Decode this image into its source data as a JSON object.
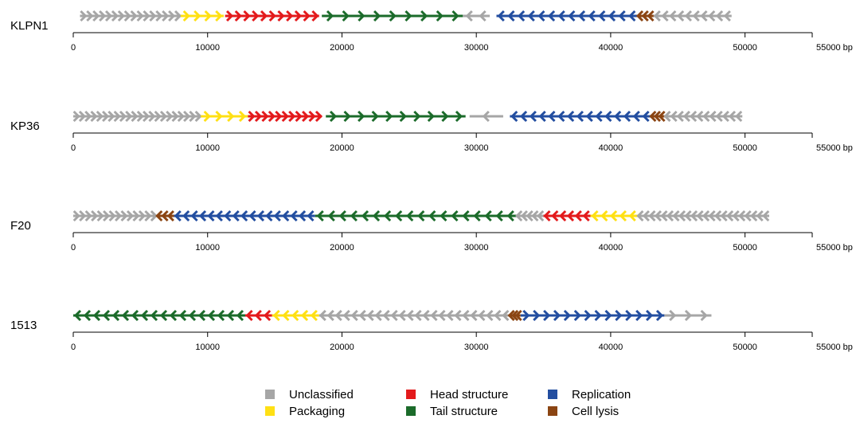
{
  "axis": {
    "tick_values": [
      0,
      10000,
      20000,
      30000,
      40000,
      50000
    ],
    "end_label": "55000 bp",
    "max": 55000
  },
  "colors": {
    "Unclassified": "#a6a6a6",
    "Packaging": "#ffe014",
    "Head structure": "#e31a1c",
    "Tail structure": "#1b6b2a",
    "Replication": "#234ea0",
    "Cell lysis": "#8b4513"
  },
  "legend": [
    {
      "label": "Unclassified",
      "category": "Unclassified"
    },
    {
      "label": "Packaging",
      "category": "Packaging"
    },
    {
      "label": "Head structure",
      "category": "Head structure"
    },
    {
      "label": "Tail structure",
      "category": "Tail structure"
    },
    {
      "label": "Replication",
      "category": "Replication"
    },
    {
      "label": "Cell lysis",
      "category": "Cell lysis"
    }
  ],
  "tracks": [
    {
      "name": "KLPN1",
      "genes": [
        [
          "Unclassified",
          500,
          8000,
          1,
          16
        ],
        [
          "Packaging",
          8000,
          11200,
          1,
          4
        ],
        [
          "Head structure",
          11300,
          18300,
          1,
          11
        ],
        [
          "Tail structure",
          18500,
          29000,
          1,
          9
        ],
        [
          "Unclassified",
          29000,
          31000,
          -1,
          2
        ],
        [
          "Replication",
          31500,
          42000,
          -1,
          14
        ],
        [
          "Cell lysis",
          42000,
          43200,
          -1,
          3
        ],
        [
          "Unclassified",
          43200,
          49000,
          -1,
          10
        ]
      ]
    },
    {
      "name": "KP36",
      "genes": [
        [
          "Unclassified",
          0,
          9500,
          1,
          22
        ],
        [
          "Packaging",
          9500,
          13000,
          1,
          4
        ],
        [
          "Head structure",
          13000,
          18500,
          1,
          11
        ],
        [
          "Tail structure",
          18800,
          29200,
          1,
          10
        ],
        [
          "Unclassified",
          29500,
          32000,
          -1,
          1
        ],
        [
          "Replication",
          32500,
          43000,
          -1,
          15
        ],
        [
          "Cell lysis",
          43000,
          44000,
          -1,
          3
        ],
        [
          "Unclassified",
          44000,
          49800,
          -1,
          12
        ]
      ]
    },
    {
      "name": "F20",
      "genes": [
        [
          "Unclassified",
          0,
          6200,
          1,
          14
        ],
        [
          "Cell lysis",
          6200,
          7500,
          -1,
          3
        ],
        [
          "Replication",
          7500,
          18000,
          -1,
          17
        ],
        [
          "Tail structure",
          18000,
          33000,
          -1,
          18
        ],
        [
          "Unclassified",
          33000,
          35000,
          -1,
          5
        ],
        [
          "Head structure",
          35000,
          38500,
          -1,
          6
        ],
        [
          "Packaging",
          38500,
          42000,
          -1,
          5
        ],
        [
          "Unclassified",
          42000,
          51800,
          -1,
          22
        ]
      ]
    },
    {
      "name": "1513",
      "genes": [
        [
          "Tail structure",
          0,
          12800,
          -1,
          18
        ],
        [
          "Head structure",
          12800,
          14800,
          -1,
          3
        ],
        [
          "Packaging",
          14800,
          18300,
          -1,
          5
        ],
        [
          "Unclassified",
          18300,
          32500,
          -1,
          24
        ],
        [
          "Cell lysis",
          32500,
          33300,
          -1,
          3
        ],
        [
          "Replication",
          33300,
          44000,
          1,
          14
        ],
        [
          "Unclassified",
          44000,
          47500,
          1,
          3
        ]
      ]
    }
  ]
}
